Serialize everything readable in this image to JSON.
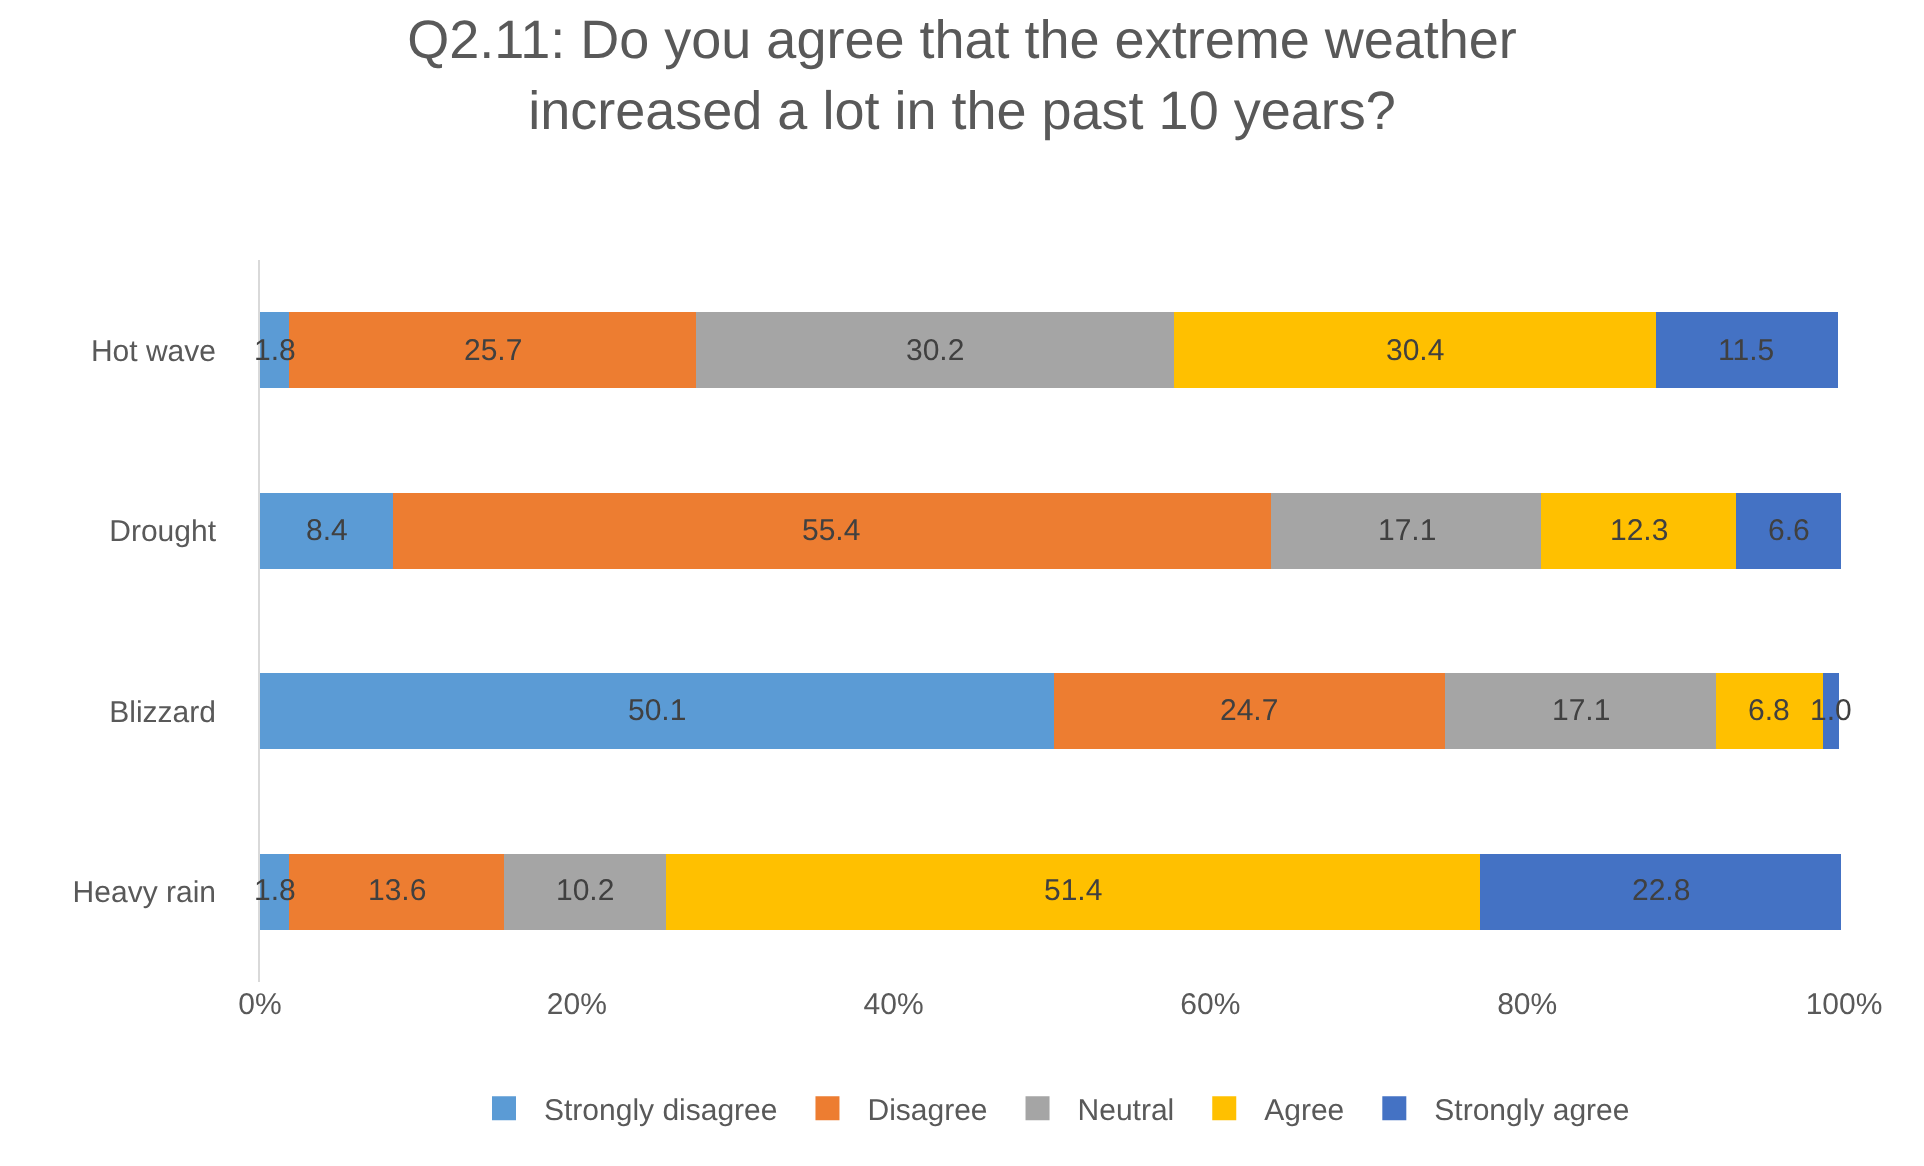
{
  "chart_data": {
    "type": "bar",
    "orientation": "horizontal",
    "stacked": true,
    "title": "Q2.11: Do you agree that the extreme weather increased a lot in the past 10 years?",
    "categories": [
      "Hot wave",
      "Drought",
      "Blizzard",
      "Heavy rain"
    ],
    "series": [
      {
        "name": "Strongly disagree",
        "color": "#5b9bd5",
        "values": [
          1.8,
          8.4,
          50.1,
          1.8
        ]
      },
      {
        "name": "Disagree",
        "color": "#ed7d31",
        "values": [
          25.7,
          55.4,
          24.7,
          13.6
        ]
      },
      {
        "name": "Neutral",
        "color": "#a5a5a5",
        "values": [
          30.2,
          17.1,
          17.1,
          10.2
        ]
      },
      {
        "name": "Agree",
        "color": "#ffc000",
        "values": [
          30.4,
          12.3,
          6.8,
          51.4
        ]
      },
      {
        "name": "Strongly agree",
        "color": "#4472c4",
        "values": [
          11.5,
          6.6,
          1.0,
          22.8
        ],
        "value_labels": [
          "11.5",
          "6.6",
          "1.0",
          "22.8"
        ]
      }
    ],
    "xlim": [
      0,
      100
    ],
    "xticks": [
      {
        "value": 0,
        "label": "0%"
      },
      {
        "value": 20,
        "label": "20%"
      },
      {
        "value": 40,
        "label": "40%"
      },
      {
        "value": 60,
        "label": "60%"
      },
      {
        "value": 80,
        "label": "80%"
      },
      {
        "value": 100,
        "label": "100%"
      }
    ],
    "data_labels": true,
    "grid": false,
    "legend": "bottom"
  }
}
